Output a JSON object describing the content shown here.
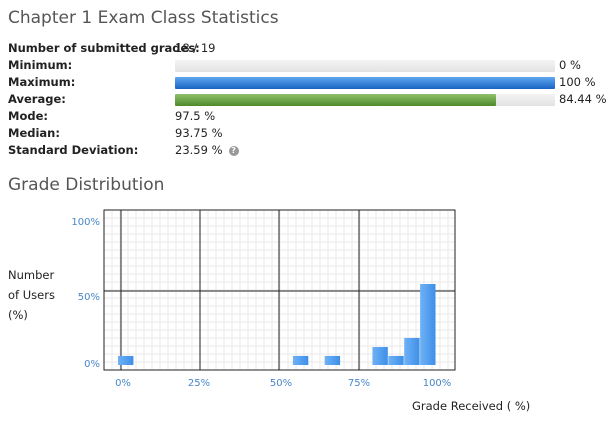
{
  "page": {
    "title": "Chapter 1 Exam Class Statistics",
    "distribution_title": "Grade Distribution"
  },
  "stats": {
    "submitted_label": "Number of submitted grades:",
    "submitted_value": "18 / 19",
    "minimum_label": "Minimum:",
    "minimum_value": "0 %",
    "minimum_fraction": 0,
    "maximum_label": "Maximum:",
    "maximum_value": "100 %",
    "maximum_fraction": 1.0,
    "average_label": "Average:",
    "average_value": "84.44 %",
    "average_fraction": 0.8444,
    "mode_label": "Mode:",
    "mode_value": "97.5 %",
    "median_label": "Median:",
    "median_value": "93.75 %",
    "stddev_label": "Standard Deviation:",
    "stddev_value": "23.59 %",
    "help_icon": "help-circle-icon"
  },
  "colors": {
    "blue_bar": "#1a63c4",
    "green_bar": "#4e8a2c",
    "hist_bar": "#3d8fe8",
    "ytick_text": "#4a86c8"
  },
  "chart_data": {
    "type": "bar",
    "xlabel": "Grade Received ( %)",
    "ylabel_lines": [
      "Number",
      "of Users",
      "(%)"
    ],
    "x_ticks": [
      "0%",
      "25%",
      "50%",
      "75%",
      "100%"
    ],
    "y_ticks": [
      "100%",
      "50%",
      "0%"
    ],
    "ylim": [
      0,
      100
    ],
    "xlim": [
      0,
      100
    ],
    "bins": [
      {
        "x": 0,
        "value": 5.6
      },
      {
        "x": 55,
        "value": 5.6
      },
      {
        "x": 65,
        "value": 5.6
      },
      {
        "x": 80,
        "value": 11.1
      },
      {
        "x": 85,
        "value": 5.6
      },
      {
        "x": 90,
        "value": 16.7
      },
      {
        "x": 95,
        "value": 50.0
      }
    ],
    "bin_width": 5,
    "grid": true
  }
}
